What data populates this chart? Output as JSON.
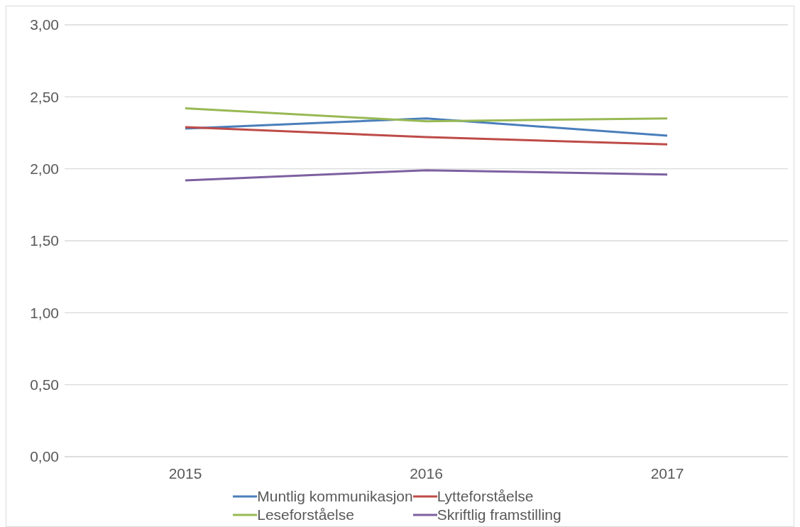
{
  "chart_data": {
    "type": "line",
    "categories": [
      "2015",
      "2016",
      "2017"
    ],
    "series": [
      {
        "name": "Muntlig kommunikasjon",
        "color": "#4a7ebb",
        "values": [
          2.28,
          2.35,
          2.23
        ]
      },
      {
        "name": "Lytteforståelse",
        "color": "#be4b48",
        "values": [
          2.29,
          2.22,
          2.17
        ]
      },
      {
        "name": "Leseforståelse",
        "color": "#98b954",
        "values": [
          2.42,
          2.33,
          2.35
        ]
      },
      {
        "name": "Skriftlig framstilling",
        "color": "#7d60a0",
        "values": [
          1.92,
          1.99,
          1.96
        ]
      }
    ],
    "ylim": [
      0,
      3
    ],
    "yticks": [
      {
        "value": 0,
        "label": "0,00"
      },
      {
        "value": 0.5,
        "label": "0,50"
      },
      {
        "value": 1,
        "label": "1,00"
      },
      {
        "value": 1.5,
        "label": "1,50"
      },
      {
        "value": 2,
        "label": "2,00"
      },
      {
        "value": 2.5,
        "label": "2,50"
      },
      {
        "value": 3,
        "label": "3,00"
      }
    ],
    "grid": "y",
    "legend": "bottom",
    "marker": "none",
    "line_style": "solid"
  }
}
